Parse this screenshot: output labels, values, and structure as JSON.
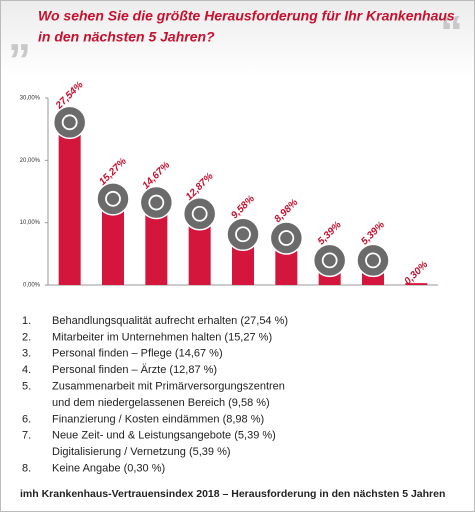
{
  "chart_data": {
    "type": "bar",
    "title": [
      "Wo sehen Sie die größte Herausforderung für Ihr Krankenhaus",
      "in den nächsten 5 Jahren?"
    ],
    "categories": [
      null,
      null,
      null,
      null,
      null,
      null,
      null,
      null,
      null
    ],
    "values": [
      27.54,
      15.27,
      14.67,
      12.87,
      9.58,
      8.98,
      5.39,
      5.39,
      0.3
    ],
    "value_labels": [
      "27,54%",
      "15,27%",
      "14,67%",
      "12,87%",
      "9,58%",
      "8,98%",
      "5,39%",
      "5,39%",
      "0,30%"
    ],
    "color": "#d4163c",
    "label_color": "#c8102e",
    "ylim": [
      0,
      30
    ],
    "yticks": [
      {
        "value": 0,
        "label": "0,00%"
      },
      {
        "value": 10,
        "label": "10,00%"
      },
      {
        "value": 20,
        "label": "20,00%"
      },
      {
        "value": 30,
        "label": "30,00%"
      }
    ],
    "grid": false,
    "list": [
      {
        "number": "1.",
        "lines": [
          "Behandlungsqualität aufrecht erhalten (27,54 %)"
        ]
      },
      {
        "number": "2.",
        "lines": [
          "Mitarbeiter im Unternehmen halten (15,27 %)"
        ]
      },
      {
        "number": "3.",
        "lines": [
          "Personal finden – Pflege (14,67 %)"
        ]
      },
      {
        "number": "4.",
        "lines": [
          "Personal finden – Ärzte (12,87 %)"
        ]
      },
      {
        "number": "5.",
        "lines": [
          "Zusammenarbeit mit Primärversorgungszentren",
          "und dem niedergelassenen Bereich (9,58 %)"
        ]
      },
      {
        "number": "6.",
        "lines": [
          "Finanzierung / Kosten eindämmen (8,98 %)"
        ]
      },
      {
        "number": "7.",
        "lines": [
          "Neue Zeit- und & Leistungsangebote (5,39 %)",
          "Digitalisierung / Vernetzung (5,39 %)"
        ]
      },
      {
        "number": "8.",
        "lines": [
          "Keine Angabe (0,30 %)"
        ]
      }
    ],
    "footer": "imh Krankenhaus-Vertrauensindex 2018 – Herausforderung in den nächsten 5 Jahren"
  }
}
